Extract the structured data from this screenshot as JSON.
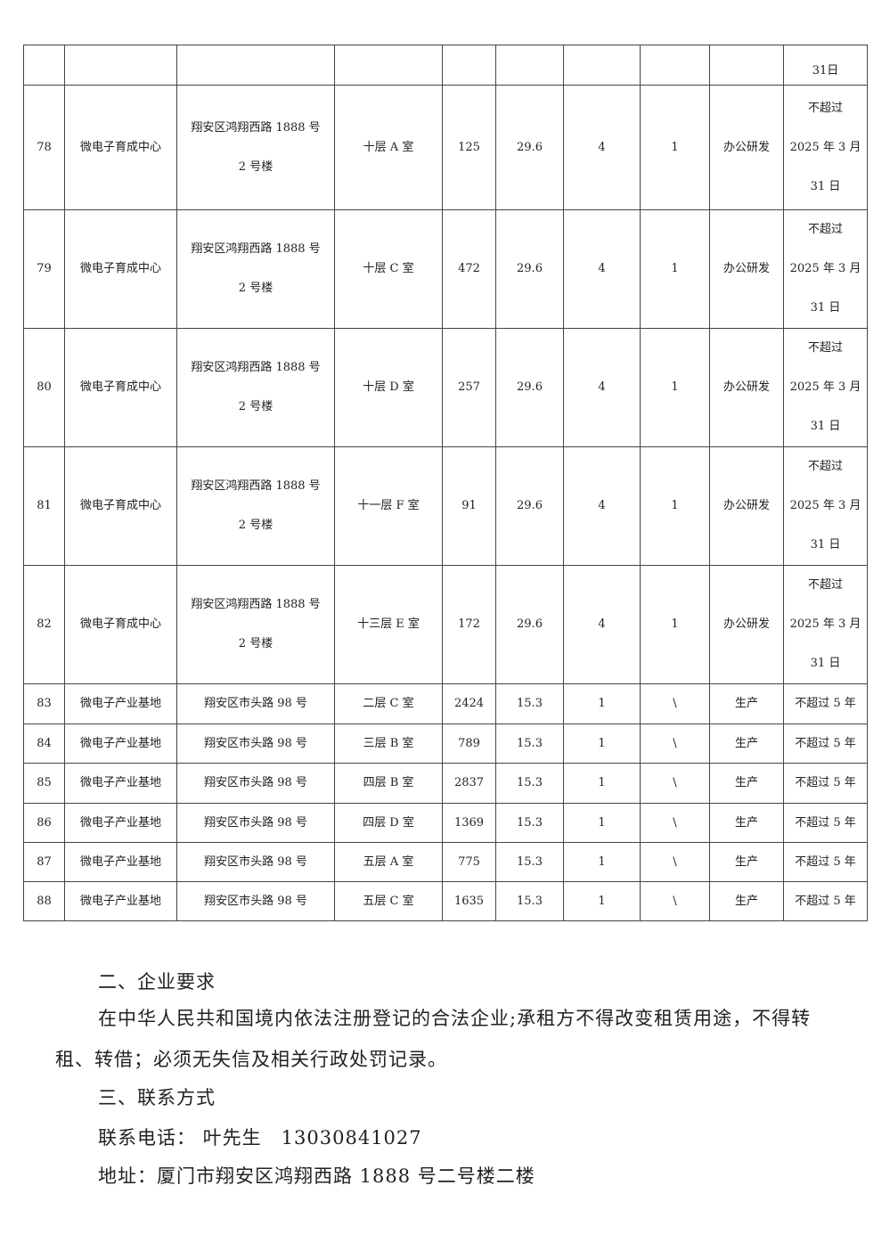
{
  "table": {
    "partial_row": {
      "period": "31日"
    },
    "tall_rows": [
      {
        "no": "78",
        "name": "微电子育成中心",
        "addr1": "翔安区鸿翔西路 1888 号",
        "addr2": "2 号楼",
        "room": "十层 A 室",
        "area": "125",
        "price": "29.6",
        "c1": "4",
        "c2": "1",
        "use": "办公研发",
        "p1": "不超过",
        "p2": "2025 年 3 月",
        "p3": "31 日"
      },
      {
        "no": "79",
        "name": "微电子育成中心",
        "addr1": "翔安区鸿翔西路 1888 号",
        "addr2": "2 号楼",
        "room": "十层 C 室",
        "area": "472",
        "price": "29.6",
        "c1": "4",
        "c2": "1",
        "use": "办公研发",
        "p1": "不超过",
        "p2": "2025 年 3 月",
        "p3": "31 日"
      },
      {
        "no": "80",
        "name": "微电子育成中心",
        "addr1": "翔安区鸿翔西路 1888 号",
        "addr2": "2 号楼",
        "room": "十层 D 室",
        "area": "257",
        "price": "29.6",
        "c1": "4",
        "c2": "1",
        "use": "办公研发",
        "p1": "不超过",
        "p2": "2025 年 3 月",
        "p3": "31 日"
      },
      {
        "no": "81",
        "name": "微电子育成中心",
        "addr1": "翔安区鸿翔西路 1888 号",
        "addr2": "2 号楼",
        "room": "十一层 F 室",
        "area": "91",
        "price": "29.6",
        "c1": "4",
        "c2": "1",
        "use": "办公研发",
        "p1": "不超过",
        "p2": "2025 年 3 月",
        "p3": "31 日"
      },
      {
        "no": "82",
        "name": "微电子育成中心",
        "addr1": "翔安区鸿翔西路 1888 号",
        "addr2": "2 号楼",
        "room": "十三层 E 室",
        "area": "172",
        "price": "29.6",
        "c1": "4",
        "c2": "1",
        "use": "办公研发",
        "p1": "不超过",
        "p2": "2025 年 3 月",
        "p3": "31 日"
      }
    ],
    "short_rows": [
      {
        "no": "83",
        "name": "微电子产业基地",
        "addr": "翔安区市头路 98 号",
        "room": "二层 C 室",
        "area": "2424",
        "price": "15.3",
        "c1": "1",
        "c2": "\\",
        "use": "生产",
        "period": "不超过 5 年"
      },
      {
        "no": "84",
        "name": "微电子产业基地",
        "addr": "翔安区市头路 98 号",
        "room": "三层 B 室",
        "area": "789",
        "price": "15.3",
        "c1": "1",
        "c2": "\\",
        "use": "生产",
        "period": "不超过 5 年"
      },
      {
        "no": "85",
        "name": "微电子产业基地",
        "addr": "翔安区市头路 98 号",
        "room": "四层 B 室",
        "area": "2837",
        "price": "15.3",
        "c1": "1",
        "c2": "\\",
        "use": "生产",
        "period": "不超过 5 年"
      },
      {
        "no": "86",
        "name": "微电子产业基地",
        "addr": "翔安区市头路 98 号",
        "room": "四层 D 室",
        "area": "1369",
        "price": "15.3",
        "c1": "1",
        "c2": "\\",
        "use": "生产",
        "period": "不超过 5 年"
      },
      {
        "no": "87",
        "name": "微电子产业基地",
        "addr": "翔安区市头路 98 号",
        "room": "五层 A 室",
        "area": "775",
        "price": "15.3",
        "c1": "1",
        "c2": "\\",
        "use": "生产",
        "period": "不超过 5 年"
      },
      {
        "no": "88",
        "name": "微电子产业基地",
        "addr": "翔安区市头路 98 号",
        "room": "五层 C 室",
        "area": "1635",
        "price": "15.3",
        "c1": "1",
        "c2": "\\",
        "use": "生产",
        "period": "不超过 5 年"
      }
    ]
  },
  "section2": {
    "heading": "二、企业要求",
    "body": "在中华人民共和国境内依法注册登记的合法企业;承租方不得改变租赁用途，不得转租、转借；必须无失信及相关行政处罚记录。"
  },
  "section3": {
    "heading": "三、联系方式",
    "phone": "联系电话： 叶先生　13030841027",
    "address": "地址：厦门市翔安区鸿翔西路 1888 号二号楼二楼"
  }
}
